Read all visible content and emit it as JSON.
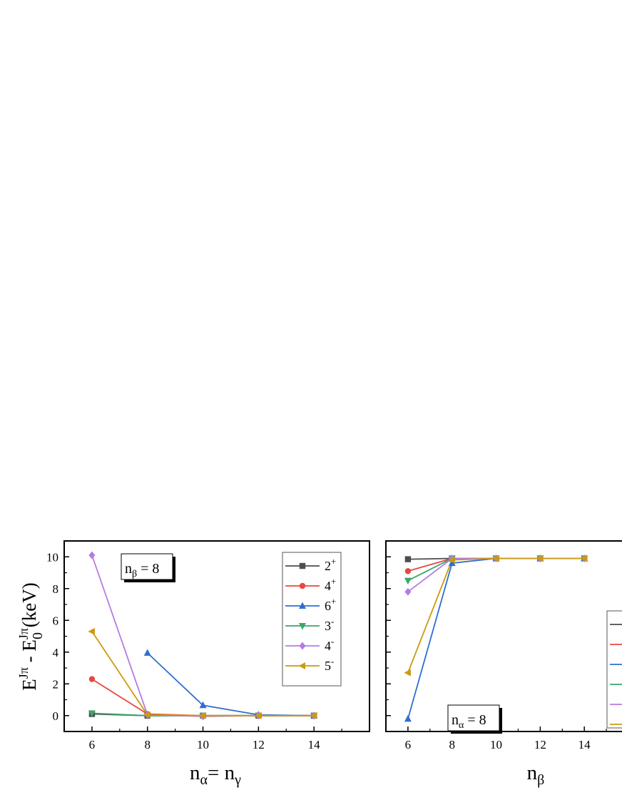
{
  "chart_data": [
    {
      "type": "line",
      "ylabel": {
        "main": "E",
        "sup1": "Jπ",
        "mid": " - E",
        "sup2": "Jπ",
        "sub2": "0",
        "tail": " (keV)"
      },
      "xlabel": {
        "p1": "n",
        "s1": "α",
        "p2": "= n",
        "s2": "γ"
      },
      "annotation": {
        "p": "n",
        "s": "β",
        "rest": " = 8"
      },
      "x": [
        6,
        8,
        10,
        12,
        14
      ],
      "xticks": [
        6,
        8,
        10,
        12,
        14
      ],
      "xlim": [
        5,
        16
      ],
      "yticks": [
        0,
        2,
        4,
        6,
        8,
        10
      ],
      "ylim": [
        -1,
        11
      ],
      "legend": {
        "position": "top-right"
      },
      "series": [
        {
          "name": "2",
          "sup": "+",
          "color": "#4d4d4d",
          "marker": "square",
          "values": [
            0.1,
            0.0,
            0.0,
            0.0,
            0.0
          ]
        },
        {
          "name": "4",
          "sup": "+",
          "color": "#e8473f",
          "marker": "circle",
          "values": [
            2.3,
            0.1,
            0.0,
            0.0,
            0.0
          ]
        },
        {
          "name": "6",
          "sup": "+",
          "color": "#2f6fd0",
          "marker": "triangle-up",
          "values": [
            null,
            3.95,
            0.65,
            0.05,
            0.0
          ]
        },
        {
          "name": "3",
          "sup": "-",
          "color": "#3aa66a",
          "marker": "triangle-down",
          "values": [
            0.15,
            0.0,
            0.0,
            0.0,
            0.0
          ]
        },
        {
          "name": "4",
          "sup": "-",
          "color": "#b57ce0",
          "marker": "diamond",
          "values": [
            10.1,
            0.05,
            -0.05,
            0.0,
            0.0
          ]
        },
        {
          "name": "5",
          "sup": "-",
          "color": "#cc9a0e",
          "marker": "triangle-left",
          "values": [
            5.3,
            0.05,
            0.0,
            0.0,
            0.0
          ]
        }
      ]
    },
    {
      "type": "line",
      "xlabel": {
        "p1": "n",
        "s1": "β"
      },
      "annotation": {
        "p": "n",
        "s": "α",
        "rest": " = 8"
      },
      "x": [
        6,
        8,
        10,
        12,
        14
      ],
      "xticks": [
        6,
        8,
        10,
        12,
        14
      ],
      "xlim": [
        5,
        16
      ],
      "ylim": [
        -1,
        11
      ],
      "yticks_unlabeled": [
        0,
        2,
        4,
        6,
        8,
        10
      ],
      "legend": {
        "position": "right"
      },
      "series": [
        {
          "color": "#4d4d4d",
          "marker": "square",
          "values": [
            9.85,
            9.9,
            9.9,
            9.9,
            9.9
          ]
        },
        {
          "color": "#e8473f",
          "marker": "circle",
          "values": [
            9.1,
            9.9,
            9.9,
            9.9,
            9.9
          ]
        },
        {
          "color": "#2f6fd0",
          "marker": "triangle-up",
          "values": [
            -0.2,
            9.6,
            9.9,
            9.9,
            9.9
          ]
        },
        {
          "color": "#3aa66a",
          "marker": "triangle-down",
          "values": [
            8.5,
            9.9,
            9.9,
            9.9,
            9.9
          ]
        },
        {
          "color": "#b57ce0",
          "marker": "diamond",
          "values": [
            7.8,
            9.9,
            9.9,
            9.9,
            9.9
          ]
        },
        {
          "color": "#cc9a0e",
          "marker": "triangle-left",
          "values": [
            2.7,
            9.8,
            9.9,
            9.9,
            9.9
          ]
        }
      ]
    }
  ]
}
